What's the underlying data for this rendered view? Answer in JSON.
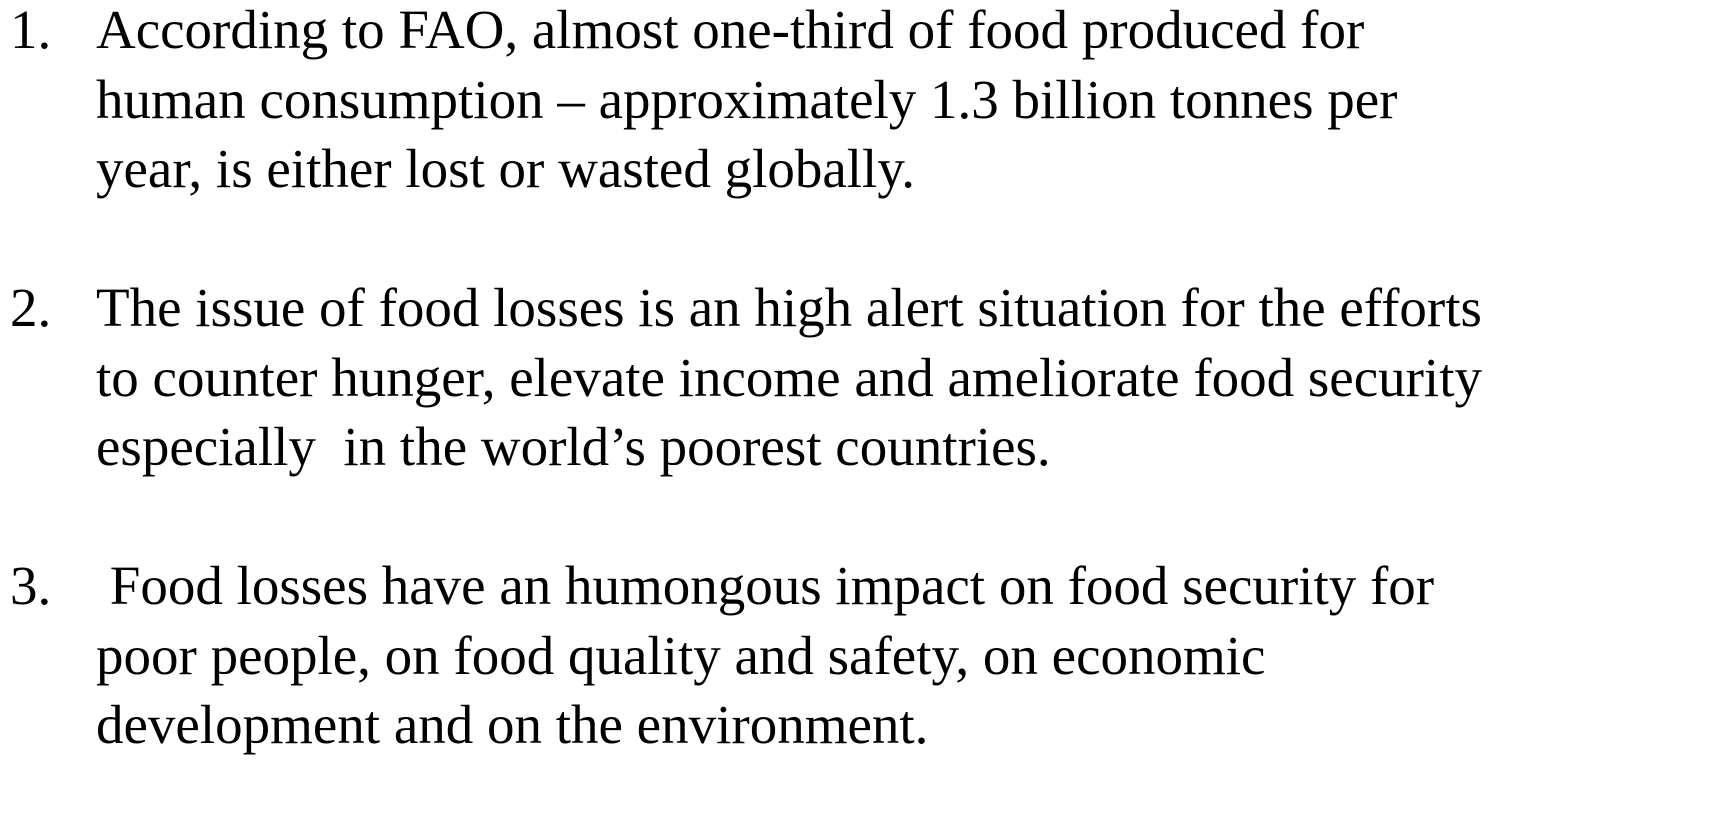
{
  "list": {
    "items": [
      {
        "number": "1.",
        "lines": [
          "According to FAO, almost one-third of food produced for",
          "human consumption – approximately 1.3 billion tonnes per",
          "year, is either lost or wasted globally."
        ]
      },
      {
        "number": "2.",
        "lines": [
          "The issue of food losses is an high alert situation for the efforts",
          "to counter hunger, elevate income and ameliorate food security",
          "especially  in the world’s poorest countries."
        ]
      },
      {
        "number": "3.",
        "lines": [
          " Food losses have an humongous impact on food security for",
          "poor people, on food quality and safety, on economic",
          "development and on the environment."
        ]
      }
    ]
  }
}
